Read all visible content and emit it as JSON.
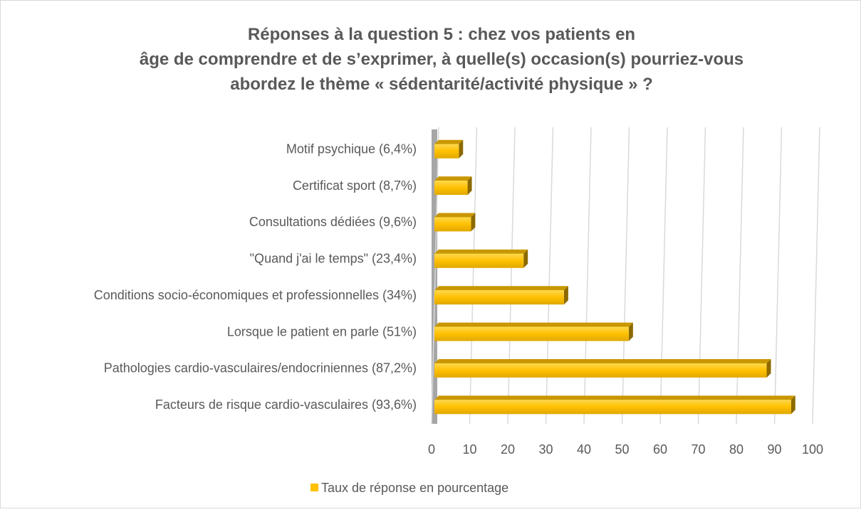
{
  "chart_data": {
    "type": "bar",
    "orientation": "horizontal",
    "title": "Réponses à la question 5 : chez vos patients en âge de comprendre et de s’exprimer, à quelle(s) occasion(s) pourriez-vous abordez le thème « sédentarité/activité physique » ?",
    "categories": [
      "Motif psychique (6,4%)",
      "Certificat sport (8,7%)",
      "Consultations dédiées (9,6%)",
      "\"Quand j'ai le temps\" (23,4%)",
      "Conditions socio-économiques et professionnelles (34%)",
      "Lorsque le patient en parle (51%)",
      "Pathologies cardio-vasculaires/endocriniennes (87,2%)",
      "Facteurs de risque cardio-vasculaires (93,6%)"
    ],
    "series": [
      {
        "name": "Taux de réponse en pourcentage",
        "color": "#ffc000",
        "values": [
          6.4,
          8.7,
          9.6,
          23.4,
          34,
          51,
          87.2,
          93.6
        ]
      }
    ],
    "xlim": [
      0,
      100
    ],
    "xticks": [
      0,
      10,
      20,
      30,
      40,
      50,
      60,
      70,
      80,
      90,
      100
    ],
    "grid": true,
    "legend": "bottom"
  }
}
